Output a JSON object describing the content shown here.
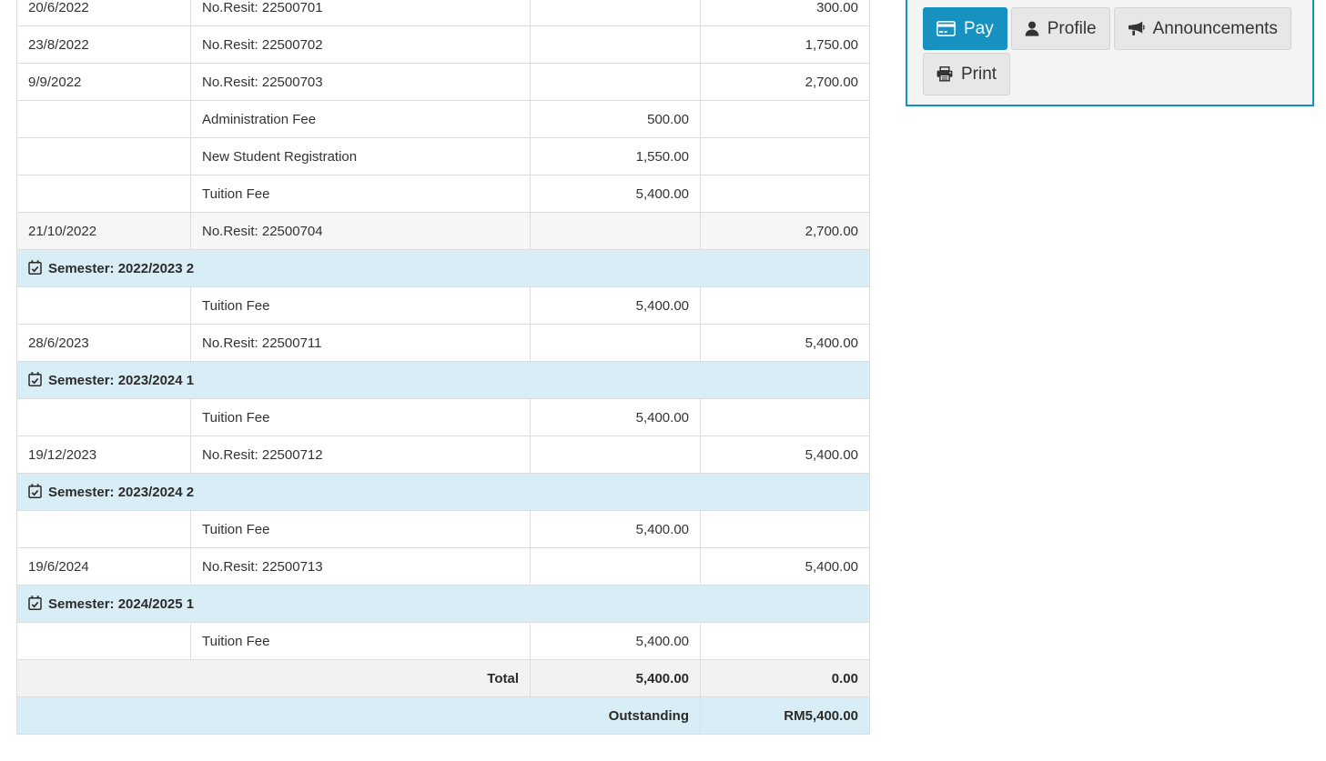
{
  "table": {
    "rows": [
      {
        "type": "entry",
        "date": "20/6/2022",
        "description": "No.Resit: 22500701",
        "debit": "",
        "credit": "300.00"
      },
      {
        "type": "entry",
        "date": "23/8/2022",
        "description": "No.Resit: 22500702",
        "debit": "",
        "credit": "1,750.00"
      },
      {
        "type": "entry",
        "date": "9/9/2022",
        "description": "No.Resit: 22500703",
        "debit": "",
        "credit": "2,700.00"
      },
      {
        "type": "entry",
        "date": "",
        "description": "Administration Fee",
        "debit": "500.00",
        "credit": ""
      },
      {
        "type": "entry",
        "date": "",
        "description": "New Student Registration",
        "debit": "1,550.00",
        "credit": ""
      },
      {
        "type": "entry",
        "date": "",
        "description": "Tuition Fee",
        "debit": "5,400.00",
        "credit": ""
      },
      {
        "type": "entry",
        "date": "21/10/2022",
        "description": "No.Resit: 22500704",
        "debit": "",
        "credit": "2,700.00",
        "striped": true
      },
      {
        "type": "semester",
        "label": "Semester: 2022/2023 2"
      },
      {
        "type": "entry",
        "date": "",
        "description": "Tuition Fee",
        "debit": "5,400.00",
        "credit": ""
      },
      {
        "type": "entry",
        "date": "28/6/2023",
        "description": "No.Resit: 22500711",
        "debit": "",
        "credit": "5,400.00"
      },
      {
        "type": "semester",
        "label": "Semester: 2023/2024 1"
      },
      {
        "type": "entry",
        "date": "",
        "description": "Tuition Fee",
        "debit": "5,400.00",
        "credit": ""
      },
      {
        "type": "entry",
        "date": "19/12/2023",
        "description": "No.Resit: 22500712",
        "debit": "",
        "credit": "5,400.00"
      },
      {
        "type": "semester",
        "label": "Semester: 2023/2024 2"
      },
      {
        "type": "entry",
        "date": "",
        "description": "Tuition Fee",
        "debit": "5,400.00",
        "credit": ""
      },
      {
        "type": "entry",
        "date": "19/6/2024",
        "description": "No.Resit: 22500713",
        "debit": "",
        "credit": "5,400.00"
      },
      {
        "type": "semester",
        "label": "Semester: 2024/2025 1"
      },
      {
        "type": "entry",
        "date": "",
        "description": "Tuition Fee",
        "debit": "5,400.00",
        "credit": ""
      },
      {
        "type": "total",
        "label": "Total",
        "debit": "5,400.00",
        "credit": "0.00"
      },
      {
        "type": "outstanding",
        "label": "Outstanding",
        "credit": "RM5,400.00"
      }
    ]
  },
  "actions": {
    "pay_label": "Pay",
    "profile_label": "Profile",
    "announcements_label": "Announcements",
    "print_label": "Print"
  },
  "colors": {
    "accent_blue": "#1791bf",
    "semester_row_bg": "#d9edf7",
    "outstanding_row_bg": "#d9edf7",
    "total_row_bg": "#f2f2f2",
    "table_border": "#dddddd"
  }
}
